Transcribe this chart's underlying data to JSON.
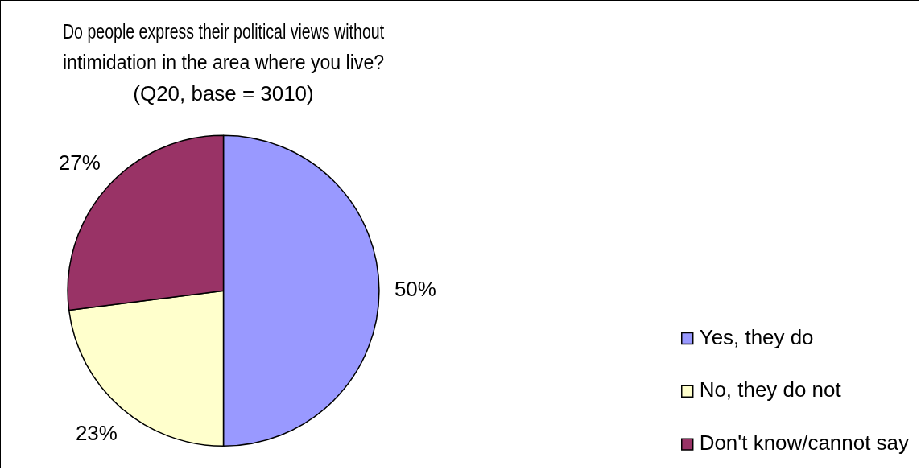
{
  "chart_data": {
    "type": "pie",
    "title": "Do people express their political views without\nintimidation in the area where you live?\n(Q20, base = 3010)",
    "categories": [
      "Yes, they do",
      "No, they do not",
      "Don't know/cannot say"
    ],
    "values": [
      50,
      23,
      27
    ],
    "colors": [
      "#9999ff",
      "#ffffcc",
      "#993366"
    ],
    "value_labels": [
      "50%",
      "23%",
      "27%"
    ],
    "legend": "bottom right"
  }
}
